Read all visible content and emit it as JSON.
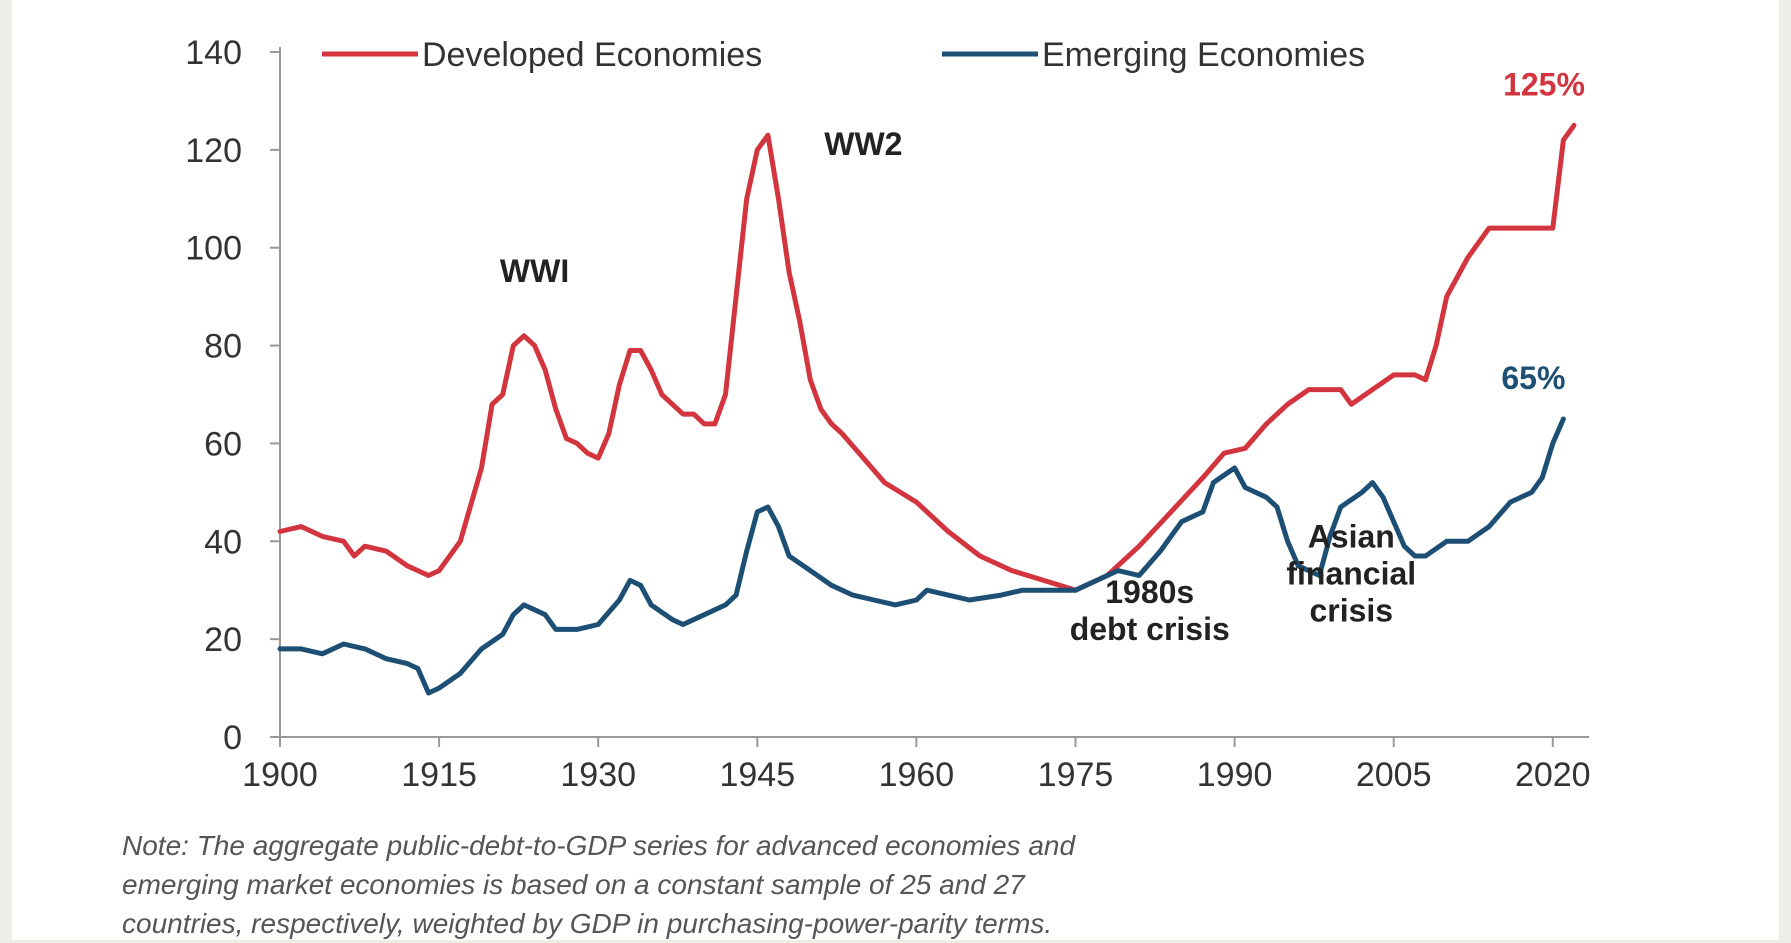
{
  "colors": {
    "developed": "#d3353f",
    "emerging": "#1d4f75",
    "axis": "#999999"
  },
  "note": {
    "line1": "Note: The aggregate public-debt-to-GDP series for advanced economies and",
    "line2": "emerging market economies is based on a constant sample of 25 and 27",
    "line3": "countries, respectively, weighted by GDP in purchasing-power-parity terms."
  },
  "chart_data": {
    "type": "line",
    "title": "",
    "xlabel": "",
    "ylabel": "",
    "xlim": [
      1900,
      2022
    ],
    "ylim": [
      0,
      140
    ],
    "x_ticks": [
      "1900",
      "1915",
      "1930",
      "1945",
      "1960",
      "1975",
      "1990",
      "2005",
      "2020"
    ],
    "y_ticks": [
      "0",
      "20",
      "40",
      "60",
      "80",
      "100",
      "120",
      "140"
    ],
    "legend": {
      "position": "top",
      "entries": [
        "Developed Economies",
        "Emerging Economies"
      ]
    },
    "series": [
      {
        "name": "Developed Economies",
        "color": "#d3353f",
        "end_label": "125%",
        "points": [
          [
            1900,
            42
          ],
          [
            1902,
            43
          ],
          [
            1904,
            41
          ],
          [
            1906,
            40
          ],
          [
            1907,
            37
          ],
          [
            1908,
            39
          ],
          [
            1910,
            38
          ],
          [
            1912,
            35
          ],
          [
            1914,
            33
          ],
          [
            1915,
            34
          ],
          [
            1917,
            40
          ],
          [
            1919,
            55
          ],
          [
            1920,
            68
          ],
          [
            1921,
            70
          ],
          [
            1922,
            80
          ],
          [
            1923,
            82
          ],
          [
            1924,
            80
          ],
          [
            1925,
            75
          ],
          [
            1926,
            67
          ],
          [
            1927,
            61
          ],
          [
            1928,
            60
          ],
          [
            1929,
            58
          ],
          [
            1930,
            57
          ],
          [
            1931,
            62
          ],
          [
            1932,
            72
          ],
          [
            1933,
            79
          ],
          [
            1934,
            79
          ],
          [
            1935,
            75
          ],
          [
            1936,
            70
          ],
          [
            1937,
            68
          ],
          [
            1938,
            66
          ],
          [
            1939,
            66
          ],
          [
            1940,
            64
          ],
          [
            1941,
            64
          ],
          [
            1942,
            70
          ],
          [
            1943,
            90
          ],
          [
            1944,
            110
          ],
          [
            1945,
            120
          ],
          [
            1946,
            123
          ],
          [
            1947,
            110
          ],
          [
            1948,
            95
          ],
          [
            1949,
            85
          ],
          [
            1950,
            73
          ],
          [
            1951,
            67
          ],
          [
            1952,
            64
          ],
          [
            1953,
            62
          ],
          [
            1955,
            57
          ],
          [
            1957,
            52
          ],
          [
            1960,
            48
          ],
          [
            1963,
            42
          ],
          [
            1966,
            37
          ],
          [
            1969,
            34
          ],
          [
            1972,
            32
          ],
          [
            1975,
            30
          ],
          [
            1978,
            33
          ],
          [
            1981,
            39
          ],
          [
            1984,
            46
          ],
          [
            1987,
            53
          ],
          [
            1989,
            58
          ],
          [
            1991,
            59
          ],
          [
            1993,
            64
          ],
          [
            1995,
            68
          ],
          [
            1997,
            71
          ],
          [
            2000,
            71
          ],
          [
            2001,
            68
          ],
          [
            2003,
            71
          ],
          [
            2005,
            74
          ],
          [
            2007,
            74
          ],
          [
            2008,
            73
          ],
          [
            2009,
            80
          ],
          [
            2010,
            90
          ],
          [
            2012,
            98
          ],
          [
            2014,
            104
          ],
          [
            2016,
            104
          ],
          [
            2018,
            104
          ],
          [
            2020,
            104
          ],
          [
            2021,
            122
          ],
          [
            2022,
            125
          ]
        ]
      },
      {
        "name": "Emerging Economies",
        "color": "#1d4f75",
        "end_label": "65%",
        "points": [
          [
            1900,
            18
          ],
          [
            1902,
            18
          ],
          [
            1904,
            17
          ],
          [
            1906,
            19
          ],
          [
            1908,
            18
          ],
          [
            1910,
            16
          ],
          [
            1912,
            15
          ],
          [
            1913,
            14
          ],
          [
            1914,
            9
          ],
          [
            1915,
            10
          ],
          [
            1917,
            13
          ],
          [
            1919,
            18
          ],
          [
            1921,
            21
          ],
          [
            1922,
            25
          ],
          [
            1923,
            27
          ],
          [
            1925,
            25
          ],
          [
            1926,
            22
          ],
          [
            1928,
            22
          ],
          [
            1930,
            23
          ],
          [
            1932,
            28
          ],
          [
            1933,
            32
          ],
          [
            1934,
            31
          ],
          [
            1935,
            27
          ],
          [
            1937,
            24
          ],
          [
            1938,
            23
          ],
          [
            1940,
            25
          ],
          [
            1942,
            27
          ],
          [
            1943,
            29
          ],
          [
            1944,
            38
          ],
          [
            1945,
            46
          ],
          [
            1946,
            47
          ],
          [
            1947,
            43
          ],
          [
            1948,
            37
          ],
          [
            1950,
            34
          ],
          [
            1952,
            31
          ],
          [
            1954,
            29
          ],
          [
            1956,
            28
          ],
          [
            1958,
            27
          ],
          [
            1960,
            28
          ],
          [
            1961,
            30
          ],
          [
            1963,
            29
          ],
          [
            1965,
            28
          ],
          [
            1968,
            29
          ],
          [
            1970,
            30
          ],
          [
            1973,
            30
          ],
          [
            1975,
            30
          ],
          [
            1977,
            32
          ],
          [
            1979,
            34
          ],
          [
            1981,
            33
          ],
          [
            1983,
            38
          ],
          [
            1985,
            44
          ],
          [
            1987,
            46
          ],
          [
            1988,
            52
          ],
          [
            1990,
            55
          ],
          [
            1991,
            51
          ],
          [
            1993,
            49
          ],
          [
            1994,
            47
          ],
          [
            1995,
            40
          ],
          [
            1996,
            35
          ],
          [
            1998,
            33
          ],
          [
            1999,
            41
          ],
          [
            2000,
            47
          ],
          [
            2002,
            50
          ],
          [
            2003,
            52
          ],
          [
            2004,
            49
          ],
          [
            2005,
            44
          ],
          [
            2006,
            39
          ],
          [
            2007,
            37
          ],
          [
            2008,
            37
          ],
          [
            2010,
            40
          ],
          [
            2012,
            40
          ],
          [
            2014,
            43
          ],
          [
            2016,
            48
          ],
          [
            2018,
            50
          ],
          [
            2019,
            53
          ],
          [
            2020,
            60
          ],
          [
            2021,
            65
          ]
        ]
      }
    ],
    "annotations": [
      {
        "lines": [
          "WWI"
        ],
        "x": 1924,
        "y": 93
      },
      {
        "lines": [
          "WW2"
        ],
        "x": 1955,
        "y": 119
      },
      {
        "lines": [
          "1980s",
          "debt crisis"
        ],
        "x": 1982,
        "y": 20
      },
      {
        "lines": [
          "Asian",
          "financial",
          "crisis"
        ],
        "x": 2001,
        "y": 24
      }
    ]
  }
}
